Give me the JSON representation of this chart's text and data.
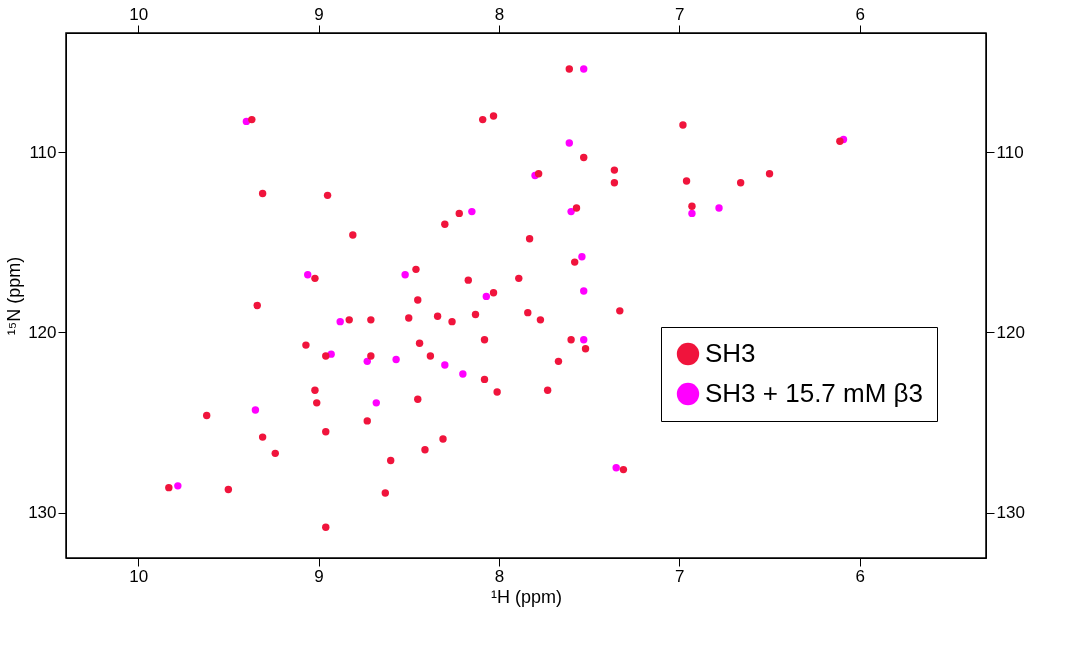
{
  "chart_data": {
    "type": "scatter",
    "xlabel": "¹H  (ppm)",
    "ylabel": "¹⁵N  (ppm)",
    "xlim": [
      10.4,
      5.3
    ],
    "xticks": [
      10,
      9,
      8,
      7,
      6
    ],
    "ylim": [
      132.5,
      103.4
    ],
    "yticks": [
      110,
      120,
      130
    ],
    "x2lim": [
      10.4,
      5.3
    ],
    "x2ticks": [
      10,
      9,
      8,
      7,
      6
    ],
    "y2lim": [
      132.5,
      103.4
    ],
    "y2ticks": [
      110,
      120,
      130
    ],
    "grid": false,
    "legend": "right",
    "marker": "circle",
    "series": [
      {
        "name": "SH3",
        "color": "#f0143c",
        "x": [
          7.61,
          9.37,
          8.09,
          8.03,
          6.98,
          6.11,
          7.53,
          7.78,
          7.36,
          7.36,
          9.31,
          8.95,
          8.22,
          8.3,
          7.57,
          8.81,
          7.83,
          8.46,
          7.58,
          8.45,
          9.02,
          8.17,
          8.03,
          7.89,
          9.34,
          8.83,
          8.71,
          8.5,
          8.34,
          8.26,
          8.13,
          7.84,
          7.77,
          7.33,
          7.6,
          7.52,
          8.44,
          8.38,
          8.08,
          9.07,
          8.96,
          8.71,
          9.02,
          9.01,
          8.45,
          8.08,
          8.01,
          7.73,
          7.67,
          9.62,
          9.31,
          8.96,
          8.73,
          8.31,
          8.41,
          9.24,
          8.6,
          9.83,
          9.5,
          7.31,
          8.96,
          8.63,
          6.93,
          6.96,
          6.66,
          6.5
        ],
        "values": [
          105.4,
          108.2,
          108.2,
          108.0,
          108.5,
          109.4,
          110.3,
          111.2,
          111.0,
          111.7,
          112.3,
          112.4,
          113.4,
          114.0,
          113.1,
          114.6,
          114.8,
          116.5,
          116.1,
          118.2,
          117.0,
          117.1,
          117.8,
          117.0,
          118.5,
          119.3,
          119.3,
          119.2,
          119.1,
          119.4,
          119.0,
          118.9,
          119.3,
          118.8,
          120.4,
          120.9,
          120.6,
          121.3,
          120.4,
          120.7,
          121.3,
          121.3,
          123.2,
          123.9,
          123.7,
          122.6,
          123.3,
          123.2,
          121.6,
          124.6,
          125.8,
          125.5,
          124.9,
          125.9,
          126.5,
          126.7,
          127.1,
          128.6,
          128.7,
          127.6,
          130.8,
          128.9,
          113.0,
          111.6,
          111.7,
          111.2
        ]
      },
      {
        "name": "SH3 + 15.7 mM β3",
        "color": "#ff00ff",
        "x": [
          7.53,
          9.4,
          6.09,
          7.61,
          7.8,
          8.15,
          7.6,
          8.52,
          7.54,
          9.06,
          8.07,
          8.88,
          8.93,
          8.73,
          8.57,
          8.68,
          9.35,
          9.78,
          7.35,
          6.78,
          6.93,
          7.53,
          8.3,
          8.2,
          7.53
        ],
        "values": [
          105.4,
          108.3,
          109.3,
          109.5,
          111.3,
          113.3,
          113.3,
          116.8,
          115.8,
          116.8,
          118.0,
          119.4,
          121.2,
          121.6,
          121.5,
          123.9,
          124.3,
          128.5,
          127.5,
          113.1,
          113.4,
          120.4,
          121.8,
          122.3,
          117.7
        ]
      }
    ]
  }
}
